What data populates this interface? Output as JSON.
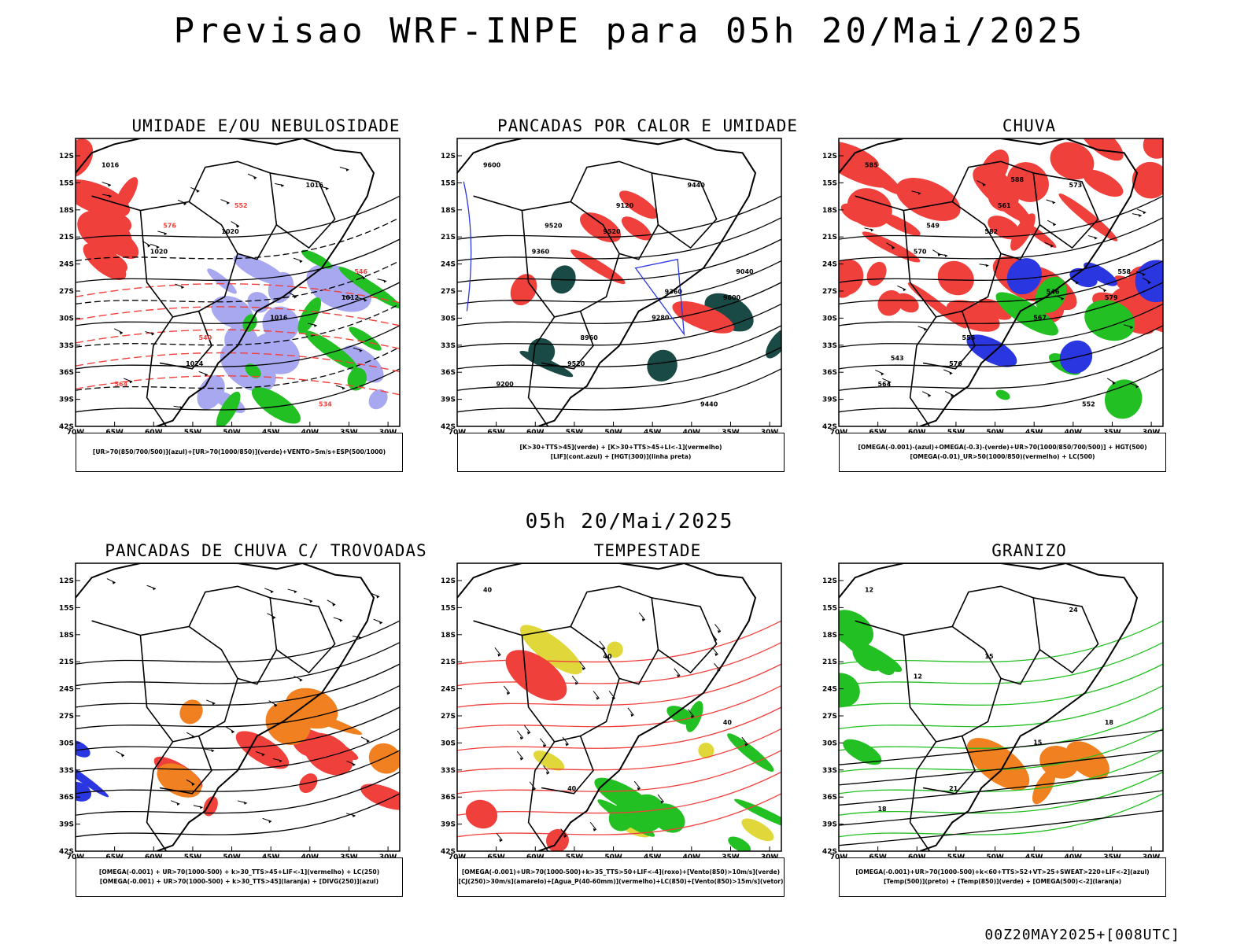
{
  "title": "Previsao WRF-INPE  para 05h 20/Mai/2025",
  "subtitle": "05h 20/Mai/2025",
  "footer": "00Z20MAY2025+[008UTC]",
  "axes": {
    "lat_labels": [
      "12S",
      "15S",
      "18S",
      "21S",
      "24S",
      "27S",
      "30S",
      "33S",
      "36S",
      "39S",
      "42S"
    ],
    "lon_labels": [
      "70W",
      "65W",
      "60W",
      "55W",
      "50W",
      "45W",
      "40W",
      "35W",
      "30W"
    ]
  },
  "colors": {
    "red": "#f0403c",
    "green": "#22c022",
    "blue": "#2a36e0",
    "lightblue": "#a8a8f0",
    "orange": "#f08020",
    "yellow": "#e0d83a",
    "darkgreen": "#1a4a45",
    "black": "#000000"
  },
  "panels": [
    {
      "title": "UMIDADE E/OU NEBULOSIDADE",
      "legend": [
        "[UR>70(850/700/500)](azul)+[UR>70(1000/850)](verde)+VENTO>5m/s+ESP(500/1000)"
      ],
      "contour_labels": [
        "1016",
        "1020",
        "1012",
        "1024",
        "1016",
        "1020",
        "1016",
        "564",
        "552",
        "546",
        "540",
        "534",
        "576"
      ]
    },
    {
      "title": "PANCADAS POR CALOR E UMIDADE",
      "legend": [
        "[K>30+TTS>45](verde) + [K>30+TTS>45+LI<-1](vermelho)",
        "[LIF](cont.azul) + [HGT(300)](linha preta)"
      ],
      "contour_labels": [
        "9600",
        "9520",
        "9600",
        "9520",
        "9440",
        "9360",
        "9280",
        "9200",
        "9120",
        "9040",
        "8960",
        "9440",
        "9520",
        "9360"
      ]
    },
    {
      "title": "CHUVA",
      "legend": [
        "[OMEGA(-0.001)-(azul)+OMEGA(-0.3)-(verde)+UR>70(1000/850/700/500)] + HGT(500)",
        "[OMEGA(-0.01)_UR>50(1000/850)(vermelho) + LC(500)"
      ],
      "contour_labels": [
        "585",
        "582",
        "579",
        "576",
        "573",
        "570",
        "567",
        "564",
        "561",
        "558",
        "555",
        "552",
        "549",
        "546",
        "543",
        "588"
      ]
    },
    {
      "title": "PANCADAS DE CHUVA C/ TROVOADAS",
      "legend": [
        "[OMEGA(-0.001) + UR>70(1000-500) + k>30_TTS>45+LIF<-1](vermelho) + LC(250)",
        "[OMEGA(-0.001) + UR>70(1000-500) + k>30_TTS>45](laranja) + [DIVG(250)](azul)"
      ],
      "contour_labels": []
    },
    {
      "title": "TEMPESTADE",
      "legend": [
        "[OMEGA(-0.001)+UR>70(1000-500)+k>35_TTS>50+LIF<-4](roxo)+[Vento(850)>10m/s](verde)",
        "[CJ(250)>30m/s](amarelo)+[Agua_P(40-60mm)](vermelho)+LC(850)+[Vento(850)>15m/s](vetor)"
      ],
      "contour_labels": [
        "40",
        "40",
        "40",
        "40"
      ]
    },
    {
      "title": "GRANIZO",
      "legend": [
        "[OMEGA(-0.001)+UR>70(1000-500)+k<60+TTS>52+VT>25+SWEAT>220+LIF<-2](azul)",
        "[Temp(500)](preto) + [Temp(850)](verde) + [OMEGA(500)<-2](laranja)"
      ],
      "contour_labels": [
        "12",
        "15",
        "18",
        "21",
        "24",
        "12",
        "15",
        "18"
      ]
    }
  ]
}
